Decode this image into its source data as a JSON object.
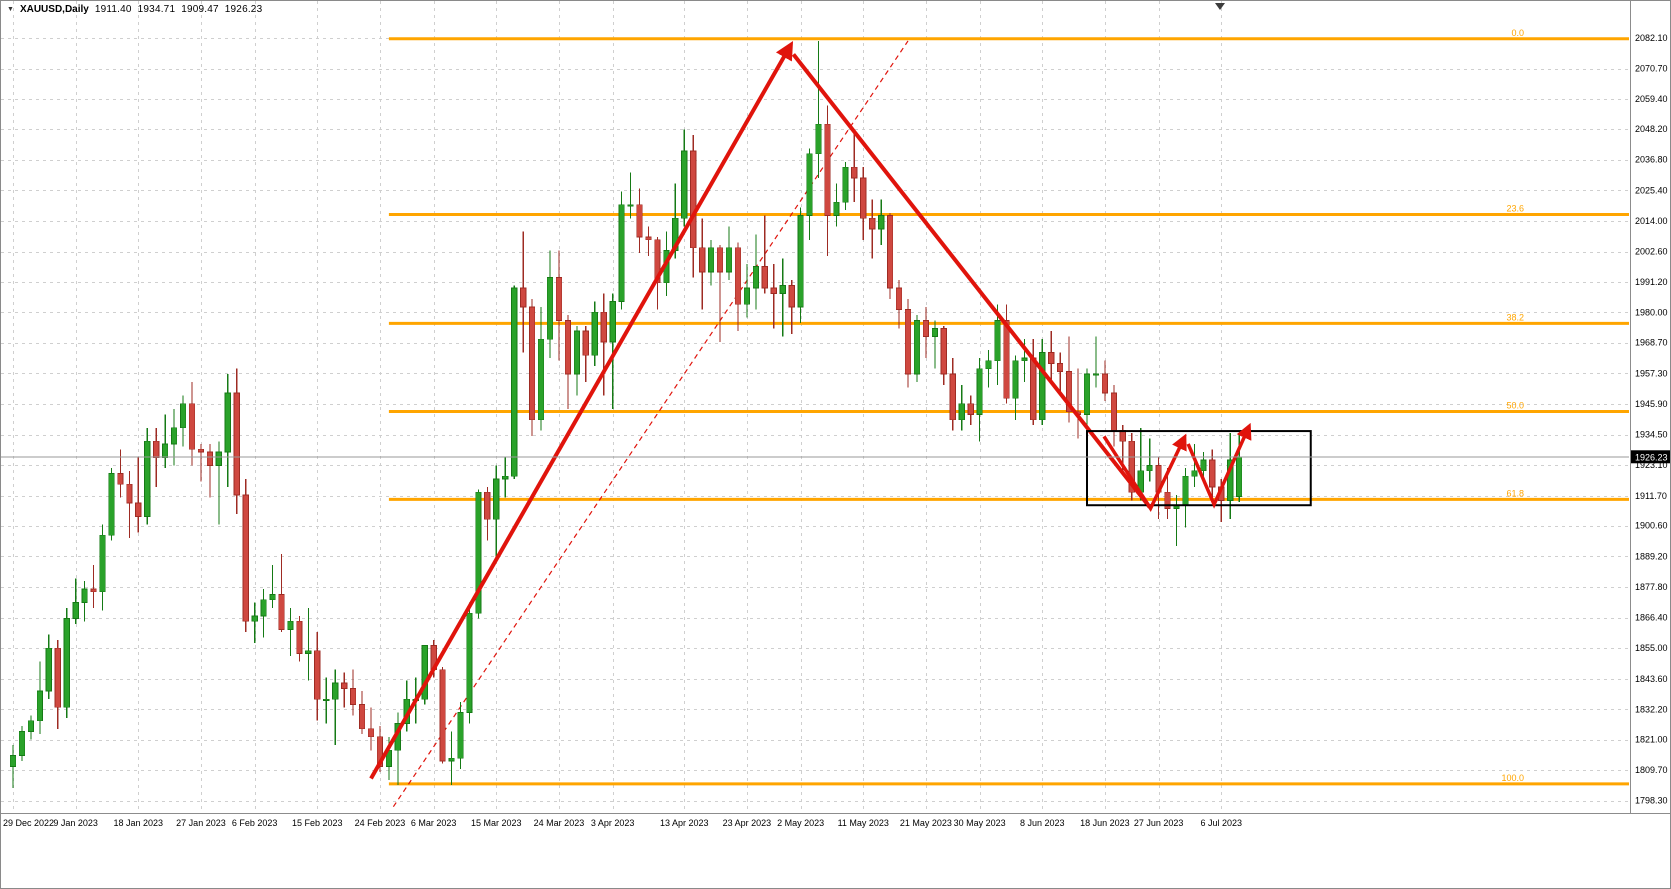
{
  "titlebar": {
    "symbol": "XAUUSD,Daily",
    "open": "1911.40",
    "high": "1934.71",
    "low": "1909.47",
    "close": "1926.23"
  },
  "colors": {
    "background": "#ffffff",
    "grid": "#cfcfcf",
    "bull_fill": "#2aa22a",
    "bull_stroke": "#157a15",
    "bear_fill": "#cf4840",
    "bear_stroke": "#9e2b23",
    "fibo": "#ffa500",
    "trend": "#e0140c",
    "rectangle": "#000000",
    "bid_line": "#9a9a9a",
    "axis_text": "#000000",
    "price_tag_bg": "#000000",
    "price_tag_text": "#ffffff"
  },
  "chart_data": {
    "type": "candlestick",
    "symbol": "XAUUSD",
    "timeframe": "Daily",
    "current_price": 1926.23,
    "price_axis_top": 2082.1,
    "price_axis_bottom": 1798.3,
    "y_ticks": [
      "2082.10",
      "2070.70",
      "2059.40",
      "2048.20",
      "2036.80",
      "2025.40",
      "2014.00",
      "2002.60",
      "1991.20",
      "1980.00",
      "1968.70",
      "1957.30",
      "1945.90",
      "1934.50",
      "1923.10",
      "1911.70",
      "1900.60",
      "1889.20",
      "1877.80",
      "1866.40",
      "1855.00",
      "1843.60",
      "1832.20",
      "1821.00",
      "1809.70",
      "1798.30"
    ],
    "x_labels": [
      {
        "i": 0,
        "t": "29 Dec 2022"
      },
      {
        "i": 7,
        "t": "9 Jan 2023"
      },
      {
        "i": 14,
        "t": "18 Jan 2023"
      },
      {
        "i": 21,
        "t": "27 Jan 2023"
      },
      {
        "i": 27,
        "t": "6 Feb 2023"
      },
      {
        "i": 34,
        "t": "15 Feb 2023"
      },
      {
        "i": 41,
        "t": "24 Feb 2023"
      },
      {
        "i": 47,
        "t": "6 Mar 2023"
      },
      {
        "i": 54,
        "t": "15 Mar 2023"
      },
      {
        "i": 61,
        "t": "24 Mar 2023"
      },
      {
        "i": 67,
        "t": "3 Apr 2023"
      },
      {
        "i": 75,
        "t": "13 Apr 2023"
      },
      {
        "i": 82,
        "t": "23 Apr 2023"
      },
      {
        "i": 88,
        "t": "2 May 2023"
      },
      {
        "i": 95,
        "t": "11 May 2023"
      },
      {
        "i": 102,
        "t": "21 May 2023"
      },
      {
        "i": 108,
        "t": "30 May 2023"
      },
      {
        "i": 115,
        "t": "8 Jun 2023"
      },
      {
        "i": 122,
        "t": "18 Jun 2023"
      },
      {
        "i": 128,
        "t": "27 Jun 2023"
      },
      {
        "i": 135,
        "t": "6 Jul 2023"
      }
    ],
    "candles": [
      [
        1811,
        1819,
        1803,
        1815
      ],
      [
        1815,
        1826,
        1813,
        1824
      ],
      [
        1824,
        1830,
        1821,
        1828
      ],
      [
        1828,
        1850,
        1823,
        1839
      ],
      [
        1839,
        1860,
        1836,
        1855
      ],
      [
        1855,
        1858,
        1825,
        1833
      ],
      [
        1833,
        1870,
        1829,
        1866
      ],
      [
        1866,
        1881,
        1864,
        1872
      ],
      [
        1872,
        1880,
        1865,
        1877
      ],
      [
        1877,
        1886,
        1870,
        1876
      ],
      [
        1876,
        1901,
        1869,
        1897
      ],
      [
        1897,
        1922,
        1895,
        1920
      ],
      [
        1920,
        1929,
        1911,
        1916
      ],
      [
        1916,
        1921,
        1896,
        1909
      ],
      [
        1909,
        1926,
        1898,
        1904
      ],
      [
        1904,
        1937,
        1901,
        1932
      ],
      [
        1932,
        1937,
        1915,
        1926
      ],
      [
        1926,
        1942,
        1922,
        1931
      ],
      [
        1931,
        1944,
        1923,
        1937
      ],
      [
        1937,
        1949,
        1930,
        1946
      ],
      [
        1946,
        1954,
        1923,
        1929
      ],
      [
        1929,
        1931,
        1917,
        1928
      ],
      [
        1928,
        1931,
        1911,
        1923
      ],
      [
        1923,
        1932,
        1901,
        1928
      ],
      [
        1928,
        1957,
        1915,
        1950
      ],
      [
        1950,
        1959,
        1905,
        1912
      ],
      [
        1912,
        1918,
        1861,
        1865
      ],
      [
        1865,
        1872,
        1857,
        1867
      ],
      [
        1867,
        1877,
        1859,
        1873
      ],
      [
        1873,
        1886,
        1870,
        1875
      ],
      [
        1875,
        1890,
        1861,
        1862
      ],
      [
        1862,
        1870,
        1852,
        1865
      ],
      [
        1865,
        1867,
        1850,
        1853
      ],
      [
        1853,
        1870,
        1843,
        1854
      ],
      [
        1854,
        1861,
        1828,
        1836
      ],
      [
        1836,
        1844,
        1827,
        1836
      ],
      [
        1836,
        1847,
        1819,
        1842
      ],
      [
        1842,
        1846,
        1833,
        1840
      ],
      [
        1840,
        1847,
        1830,
        1834
      ],
      [
        1834,
        1839,
        1823,
        1825
      ],
      [
        1825,
        1833,
        1817,
        1822
      ],
      [
        1822,
        1826,
        1809,
        1811
      ],
      [
        1811,
        1822,
        1806,
        1817
      ],
      [
        1817,
        1831,
        1804,
        1827
      ],
      [
        1827,
        1843,
        1824,
        1836
      ],
      [
        1836,
        1844,
        1827,
        1836
      ],
      [
        1836,
        1856,
        1834,
        1856
      ],
      [
        1856,
        1858,
        1844,
        1847
      ],
      [
        1847,
        1848,
        1812,
        1813
      ],
      [
        1813,
        1824,
        1804,
        1814
      ],
      [
        1814,
        1835,
        1810,
        1831
      ],
      [
        1831,
        1872,
        1827,
        1868
      ],
      [
        1868,
        1914,
        1866,
        1913
      ],
      [
        1913,
        1915,
        1895,
        1903
      ],
      [
        1903,
        1923,
        1889,
        1918
      ],
      [
        1918,
        1926,
        1911,
        1919
      ],
      [
        1919,
        1990,
        1918,
        1989
      ],
      [
        1989,
        2010,
        1965,
        1982
      ],
      [
        1982,
        1985,
        1934,
        1940
      ],
      [
        1940,
        1982,
        1936,
        1970
      ],
      [
        1970,
        2003,
        1963,
        1993
      ],
      [
        1993,
        2003,
        1962,
        1977
      ],
      [
        1977,
        1979,
        1944,
        1957
      ],
      [
        1957,
        1975,
        1949,
        1973
      ],
      [
        1973,
        1975,
        1954,
        1964
      ],
      [
        1964,
        1984,
        1960,
        1980
      ],
      [
        1980,
        1987,
        1949,
        1969
      ],
      [
        1969,
        1987,
        1944,
        1984
      ],
      [
        1984,
        2025,
        1981,
        2020
      ],
      [
        2020,
        2032,
        2015,
        2020
      ],
      [
        2020,
        2026,
        2002,
        2008
      ],
      [
        2008,
        2012,
        2001,
        2007
      ],
      [
        2007,
        2008,
        1981,
        1991
      ],
      [
        1991,
        2010,
        1986,
        2003
      ],
      [
        2003,
        2028,
        2000,
        2015
      ],
      [
        2015,
        2048,
        2012,
        2040
      ],
      [
        2040,
        2046,
        1993,
        2004
      ],
      [
        2004,
        2015,
        1981,
        1995
      ],
      [
        1995,
        2007,
        1990,
        2004
      ],
      [
        2004,
        2005,
        1969,
        1995
      ],
      [
        1995,
        2012,
        1992,
        2004
      ],
      [
        2004,
        2006,
        1973,
        1983
      ],
      [
        1983,
        1998,
        1978,
        1989
      ],
      [
        1989,
        2009,
        1981,
        1997
      ],
      [
        1997,
        2016,
        1987,
        1989
      ],
      [
        1989,
        1998,
        1974,
        1987
      ],
      [
        1987,
        2000,
        1971,
        1990
      ],
      [
        1990,
        1992,
        1972,
        1982
      ],
      [
        1982,
        2019,
        1976,
        2016
      ],
      [
        2016,
        2041,
        2007,
        2039
      ],
      [
        2039,
        2081,
        2030,
        2050
      ],
      [
        2050,
        2057,
        2001,
        2016
      ],
      [
        2016,
        2028,
        2012,
        2021
      ],
      [
        2021,
        2036,
        2018,
        2034
      ],
      [
        2034,
        2048,
        2021,
        2030
      ],
      [
        2030,
        2034,
        2007,
        2015
      ],
      [
        2015,
        2022,
        2000,
        2011
      ],
      [
        2011,
        2022,
        2005,
        2016
      ],
      [
        2016,
        2017,
        1985,
        1989
      ],
      [
        1989,
        1992,
        1974,
        1981
      ],
      [
        1981,
        1985,
        1952,
        1957
      ],
      [
        1957,
        1979,
        1954,
        1977
      ],
      [
        1977,
        1982,
        1963,
        1971
      ],
      [
        1971,
        1977,
        1959,
        1974
      ],
      [
        1974,
        1975,
        1953,
        1957
      ],
      [
        1957,
        1963,
        1936,
        1940
      ],
      [
        1940,
        1953,
        1936,
        1946
      ],
      [
        1946,
        1949,
        1938,
        1942
      ],
      [
        1942,
        1963,
        1932,
        1959
      ],
      [
        1959,
        1966,
        1952,
        1962
      ],
      [
        1962,
        1983,
        1953,
        1977
      ],
      [
        1977,
        1983,
        1946,
        1948
      ],
      [
        1948,
        1964,
        1940,
        1962
      ],
      [
        1962,
        1970,
        1954,
        1963
      ],
      [
        1963,
        1970,
        1938,
        1940
      ],
      [
        1940,
        1970,
        1938,
        1965
      ],
      [
        1965,
        1973,
        1955,
        1961
      ],
      [
        1961,
        1965,
        1950,
        1958
      ],
      [
        1958,
        1971,
        1939,
        1943
      ],
      [
        1943,
        1959,
        1933,
        1942
      ],
      [
        1942,
        1959,
        1925,
        1957
      ],
      [
        1957,
        1971,
        1952,
        1957
      ],
      [
        1957,
        1962,
        1947,
        1950
      ],
      [
        1950,
        1953,
        1930,
        1936
      ],
      [
        1936,
        1938,
        1920,
        1932
      ],
      [
        1932,
        1935,
        1910,
        1913
      ],
      [
        1913,
        1937,
        1910,
        1921
      ],
      [
        1921,
        1933,
        1917,
        1923
      ],
      [
        1923,
        1926,
        1903,
        1913
      ],
      [
        1913,
        1922,
        1903,
        1907
      ],
      [
        1907,
        1912,
        1893,
        1908
      ],
      [
        1908,
        1922,
        1900,
        1919
      ],
      [
        1919,
        1931,
        1915,
        1921
      ],
      [
        1921,
        1928,
        1917,
        1925
      ],
      [
        1925,
        1929,
        1910,
        1915
      ],
      [
        1915,
        1918,
        1902,
        1910
      ],
      [
        1910,
        1935,
        1903,
        1925
      ],
      [
        1911.4,
        1934.71,
        1909.47,
        1926.23
      ]
    ],
    "fibonacci": {
      "anchor_index": 42,
      "levels": [
        {
          "label": "0.0",
          "price": 2081.8
        },
        {
          "label": "23.6",
          "price": 2016.4
        },
        {
          "label": "38.2",
          "price": 1975.9
        },
        {
          "label": "50.0",
          "price": 1943.1
        },
        {
          "label": "61.8",
          "price": 1910.4
        },
        {
          "label": "100.0",
          "price": 1804.5
        }
      ]
    },
    "annotations": {
      "trend_arrow_up": {
        "from": {
          "i": 40,
          "p": 1806.5
        },
        "to": {
          "i": 86.9,
          "p": 2079.5
        }
      },
      "trend_arrow_down": {
        "from": {
          "i": 87.2,
          "p": 2076
        },
        "to": {
          "i": 127,
          "p": 1907.5
        }
      },
      "dashed_trendline": {
        "from": {
          "i": 42.5,
          "p": 1796
        },
        "to": {
          "i": 100,
          "p": 2081
        }
      },
      "zigzag_arrows": [
        [
          {
            "i": 121.9,
            "p": 1933.8
          },
          {
            "i": 127.1,
            "p": 1907
          },
          {
            "i": 130.9,
            "p": 1933.5
          }
        ],
        [
          {
            "i": 131.3,
            "p": 1931
          },
          {
            "i": 134.2,
            "p": 1908.5
          },
          {
            "i": 138.1,
            "p": 1937.5
          }
        ]
      ],
      "rectangle": {
        "i1": 120,
        "i2": 145,
        "p_top": 1935.8,
        "p_bottom": 1908.2
      }
    }
  }
}
